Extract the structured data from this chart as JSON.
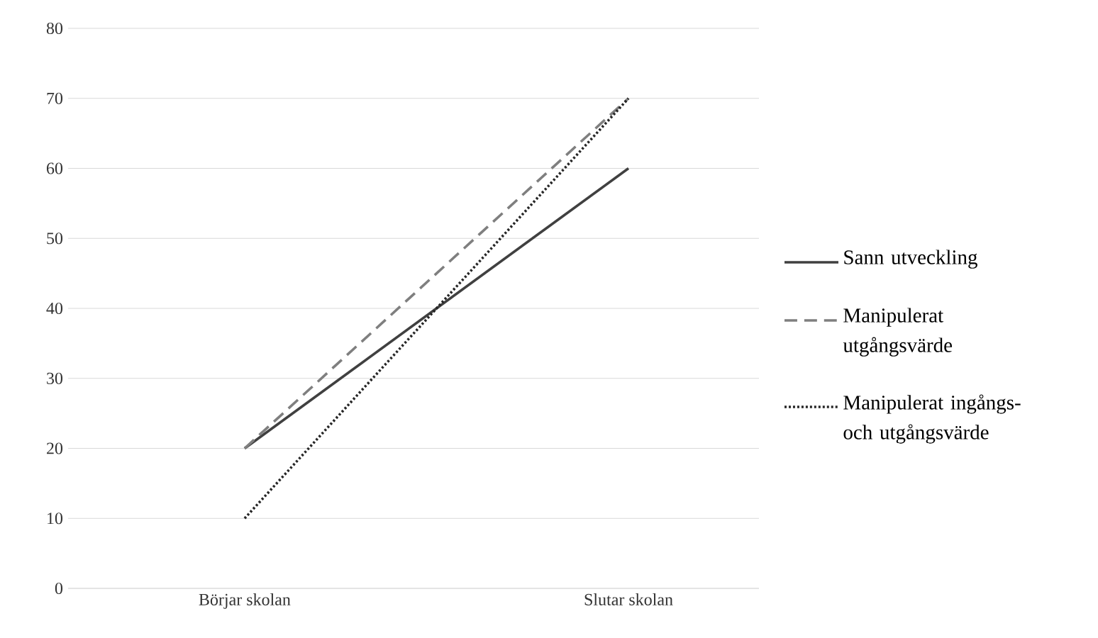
{
  "chart_data": {
    "type": "line",
    "categories": [
      "Börjar skolan",
      "Slutar skolan"
    ],
    "series": [
      {
        "name": "Sann utveckling",
        "color": "#404040",
        "values": [
          20,
          60
        ],
        "line_style": "solid"
      },
      {
        "name": "Manipulerat utgångsvärde",
        "color": "#7f7f7f",
        "values": [
          20,
          70
        ],
        "line_style": "dashed"
      },
      {
        "name": "Manipulerat ingångs- och utgångsvärde",
        "color": "#262626",
        "values": [
          10,
          70
        ],
        "line_style": "dotted"
      }
    ],
    "ylim": [
      0,
      80
    ],
    "yticks": [
      0,
      10,
      20,
      30,
      40,
      50,
      60,
      70,
      80
    ],
    "grid": "y",
    "legend": "right",
    "marker": "none"
  }
}
